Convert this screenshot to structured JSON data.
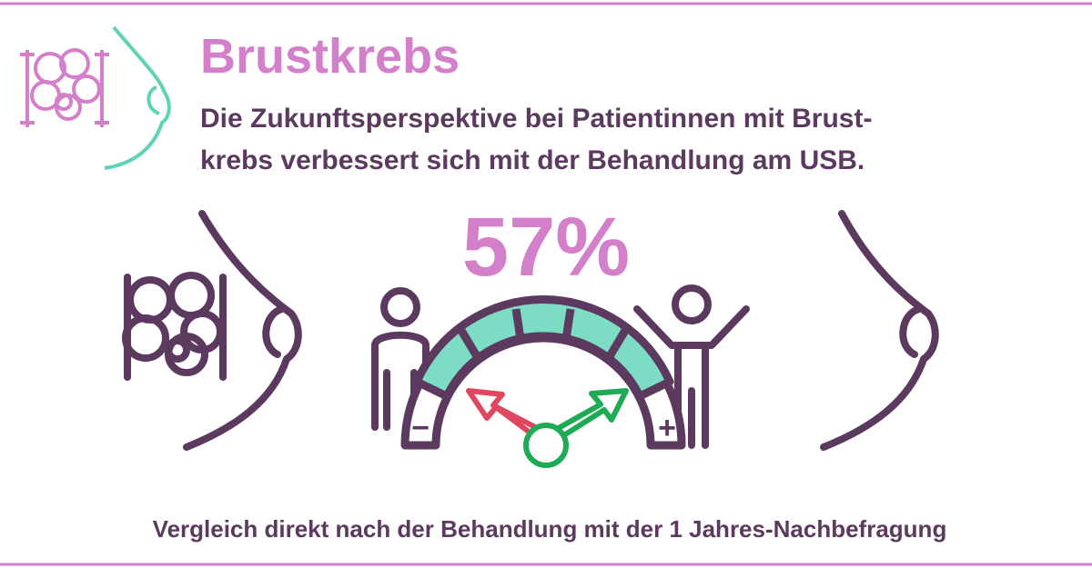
{
  "header": {
    "title": "Brustkrebs",
    "subtitle": [
      "Die Zukunftsperspektive bei Patientinnen mit Brust-",
      "krebs verbessert sich mit der Behandlung am USB."
    ]
  },
  "stat": "57%",
  "gauge": {
    "minus": "−",
    "plus": "+"
  },
  "caption": "Vergleich direkt nach der Behandlung mit der 1 Jahres-Nachbefragung"
}
